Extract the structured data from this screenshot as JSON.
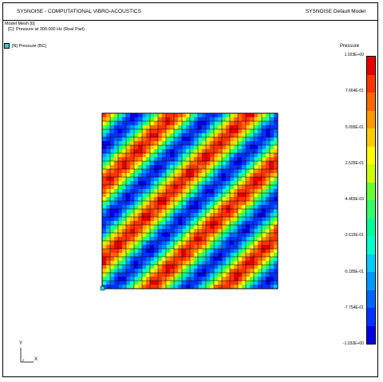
{
  "header": {
    "left_title": "SYSNOISE - COMPUTATIONAL VIBRO-ACOUSTICS",
    "right_title": "SYSNOISE Default Model"
  },
  "info": {
    "line1": "Model Mesh [0]",
    "line2": "[C]: Pressure at 300.000 Hz (Real Part)"
  },
  "bc_legend": {
    "label": "[N] Pressure (BC)",
    "color": "#33c8d6"
  },
  "scale": {
    "title": "Pressure",
    "ticks": [
      "1.023E+00",
      "7.664E-01",
      "5.095E-01",
      "2.525E-01",
      "-4.465E-03",
      "-2.615E-01",
      "-5.185E-01",
      "-7.754E-01",
      "-1.032E+00"
    ],
    "colors": [
      "#e60000",
      "#ff3300",
      "#ff6600",
      "#ff9900",
      "#ffcc00",
      "#ffff00",
      "#ccff00",
      "#66ff33",
      "#33ff66",
      "#00ff99",
      "#00ffcc",
      "#00ccff",
      "#0099ff",
      "#0066ff",
      "#0033ff",
      "#0000e6"
    ]
  },
  "axes": {
    "y_label": "Y",
    "x_label": "X",
    "origin_label": "Z"
  }
}
